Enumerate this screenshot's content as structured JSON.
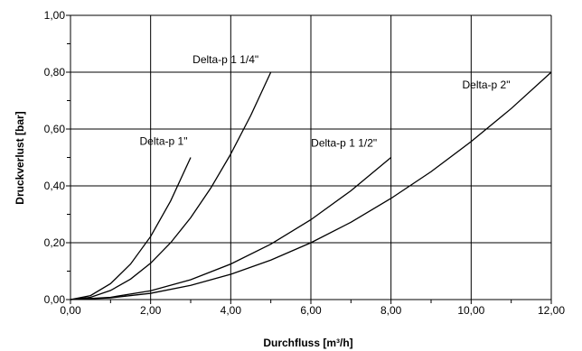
{
  "chart_data": {
    "type": "line",
    "title": "",
    "xlabel": "Durchfluss [m³/h]",
    "ylabel": "Druckverlust [bar]",
    "xlim": [
      0,
      12
    ],
    "ylim": [
      0,
      1
    ],
    "x_ticks": [
      0,
      2,
      4,
      6,
      8,
      10,
      12
    ],
    "y_ticks": [
      0,
      0.2,
      0.4,
      0.6,
      0.8,
      1.0
    ],
    "x_tick_labels": [
      "0,00",
      "2,00",
      "4,00",
      "6,00",
      "8,00",
      "10,00",
      "12,00"
    ],
    "y_tick_labels": [
      "0,00",
      "0,20",
      "0,40",
      "0,60",
      "0,80",
      "1,00"
    ],
    "grid": true,
    "legend": "none",
    "series": [
      {
        "name": "Delta-p 1\"",
        "x": [
          0,
          0.5,
          1.0,
          1.5,
          2.0,
          2.5,
          3.0
        ],
        "y": [
          0,
          0.014,
          0.056,
          0.125,
          0.222,
          0.347,
          0.5
        ]
      },
      {
        "name": "Delta-p 1 1/4\"",
        "x": [
          0,
          0.5,
          1.0,
          1.5,
          2.0,
          2.5,
          3.0,
          3.5,
          4.0,
          4.5,
          5.0
        ],
        "y": [
          0,
          0.008,
          0.032,
          0.072,
          0.128,
          0.2,
          0.288,
          0.392,
          0.512,
          0.648,
          0.8
        ]
      },
      {
        "name": "Delta-p 1 1/2\"",
        "x": [
          0,
          1,
          2,
          3,
          4,
          5,
          6,
          7,
          8
        ],
        "y": [
          0,
          0.008,
          0.031,
          0.07,
          0.125,
          0.195,
          0.281,
          0.383,
          0.5
        ]
      },
      {
        "name": "Delta-p 2\"",
        "x": [
          0,
          1,
          2,
          3,
          4,
          5,
          6,
          7,
          8,
          9,
          10,
          11,
          12
        ],
        "y": [
          0,
          0.006,
          0.022,
          0.05,
          0.089,
          0.139,
          0.2,
          0.272,
          0.356,
          0.45,
          0.556,
          0.672,
          0.8
        ]
      }
    ]
  }
}
